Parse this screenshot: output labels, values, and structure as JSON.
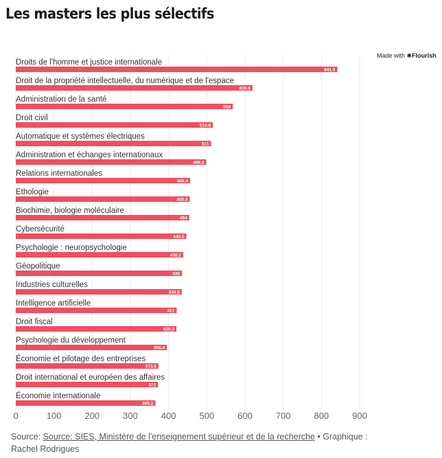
{
  "title": "Les masters les plus sélectifs",
  "credit": {
    "made_with": "Made with",
    "brand": "✱Flourish"
  },
  "footer": {
    "source_prefix": "Source: ",
    "source_link": "Source: SIES, Ministère de l'enseignement supérieur et de la recherche",
    "graphic_credit": " • Graphique : Rachel Rodrigues"
  },
  "colors": {
    "bar": "#f04f5e",
    "value_label": "#ffffff",
    "grid": "#eaeaea",
    "axis": "#666666"
  },
  "chart_data": {
    "type": "bar",
    "orientation": "horizontal",
    "title": "Les masters les plus sélectifs",
    "xlabel": "",
    "ylabel": "",
    "xlim": [
      0,
      900
    ],
    "xticks": [
      0,
      100,
      200,
      300,
      400,
      500,
      600,
      700,
      800,
      900
    ],
    "grid": true,
    "categories": [
      "Droits de l'homme et justice internationale",
      "Droit de la propriété intellectuelle, du numérique et de l'espace",
      "Administration de la santé",
      "Droit civil",
      "Automatique et systèmes électriques",
      "Administration et échanges internationaux",
      "Relations internationales",
      "Ethologie",
      "Biochimie, biologie moléculaire",
      "Cybersécurité",
      "Psychologie : neuropsychologie",
      "Géopolitique",
      "Industries culturelles",
      "Intelligence artificielle",
      "Droit fiscal",
      "Psychologie du développement",
      "Économie et pilotage des entreprises",
      "Droit international et européen des affaires",
      "Économie internationale"
    ],
    "values": [
      841.5,
      619.5,
      568,
      515.8,
      511,
      498.5,
      456.4,
      455.5,
      454,
      446.5,
      438.2,
      435,
      434.5,
      421,
      420.3,
      395.4,
      373.5,
      372,
      365.2
    ]
  }
}
